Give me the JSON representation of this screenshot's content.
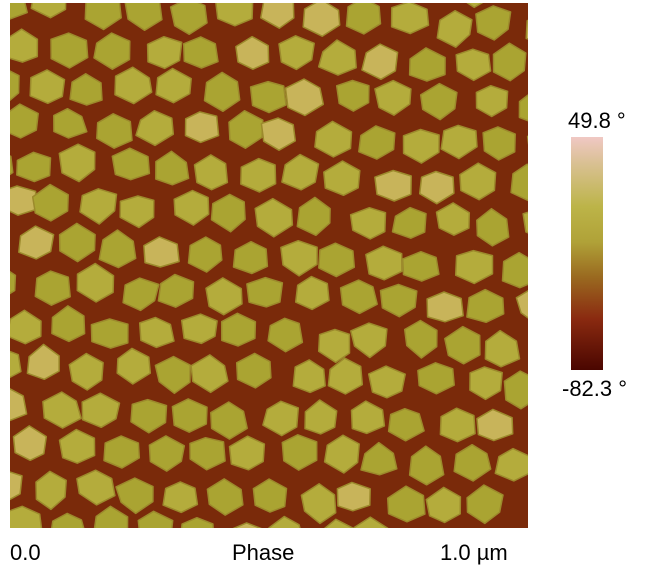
{
  "image": {
    "scale_start": "0.0",
    "channel": "Phase",
    "scale_end": "1.0 µm"
  },
  "colorbar": {
    "max": "49.8 °",
    "min": "-82.3 °"
  }
}
